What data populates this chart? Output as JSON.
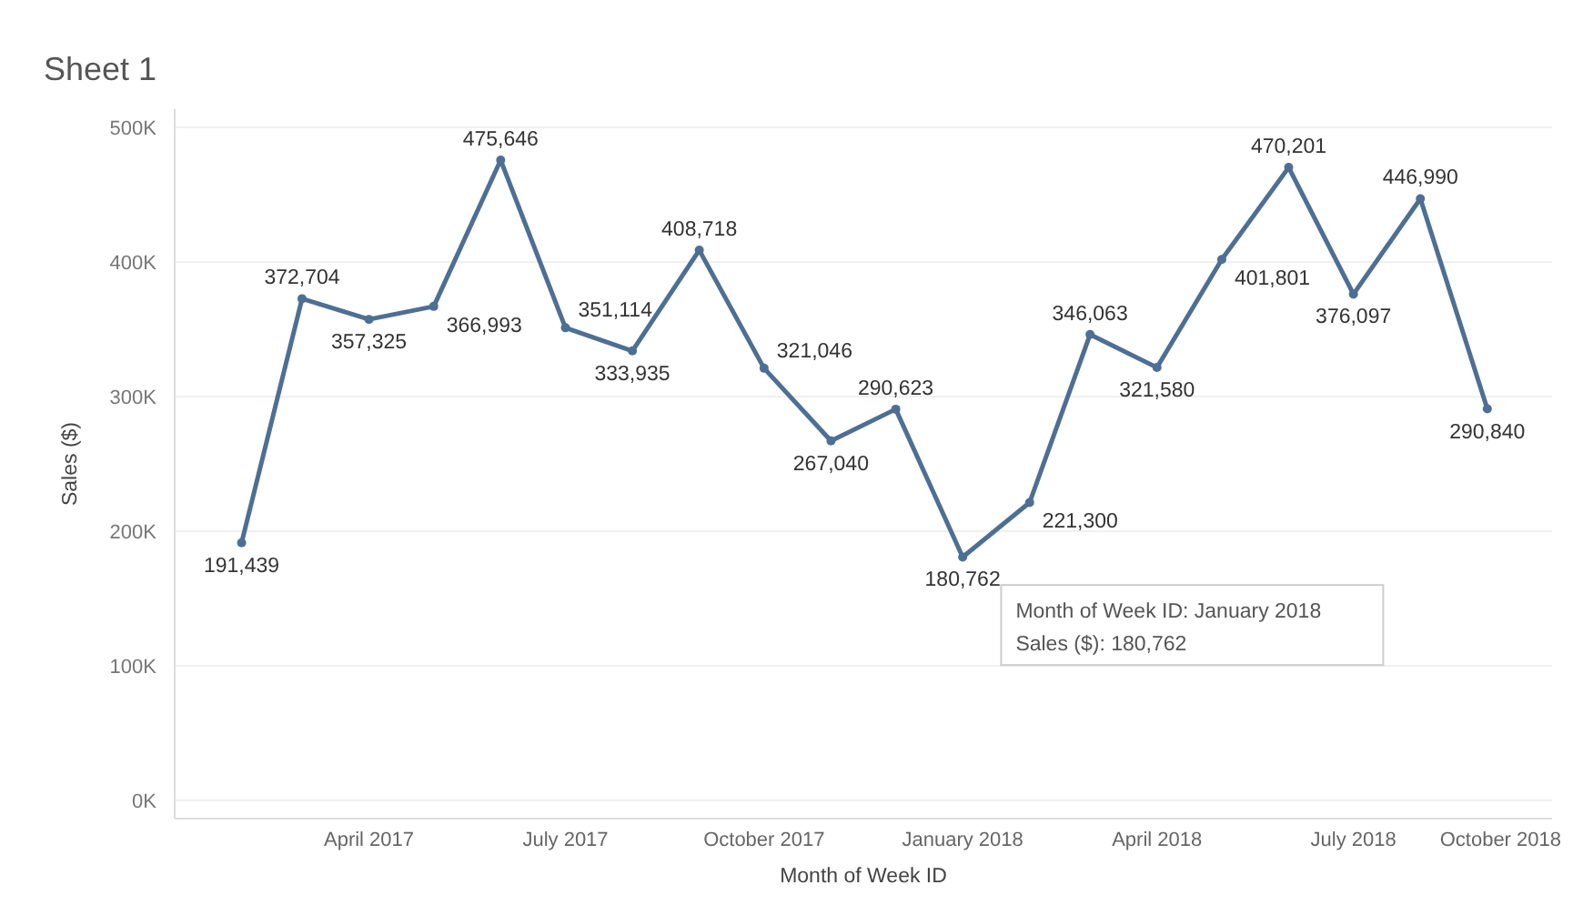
{
  "chart_data": {
    "type": "line",
    "title": "Sheet 1",
    "xlabel": "Month of Week ID",
    "ylabel": "Sales ($)",
    "x": [
      "2017-02",
      "2017-03",
      "2017-04",
      "2017-05",
      "2017-06",
      "2017-07",
      "2017-08",
      "2017-09",
      "2017-10",
      "2017-11",
      "2017-12",
      "2018-01",
      "2018-02",
      "2018-03",
      "2018-04",
      "2018-05",
      "2018-06",
      "2018-07",
      "2018-08",
      "2018-09"
    ],
    "series": [
      {
        "color": "#4e6f94",
        "values": [
          191439,
          372704,
          357325,
          366993,
          475646,
          351114,
          333935,
          408718,
          321046,
          267040,
          290623,
          180762,
          221300,
          346063,
          321580,
          401801,
          470201,
          376097,
          446990,
          290840
        ],
        "value_labels": [
          "191,439",
          "372,704",
          "357,325",
          "366,993",
          "475,646",
          "351,114",
          "333,935",
          "408,718",
          "321,046",
          "267,040",
          "290,623",
          "180,762",
          "221,300",
          "346,063",
          "321,580",
          "401,801",
          "470,201",
          "376,097",
          "446,990",
          "290,840"
        ]
      }
    ],
    "xlim": [
      "2017-01",
      "2018-10"
    ],
    "xticks": [
      {
        "value": "2017-04",
        "label": "April 2017"
      },
      {
        "value": "2017-07",
        "label": "July 2017"
      },
      {
        "value": "2017-10",
        "label": "October 2017"
      },
      {
        "value": "2018-01",
        "label": "January 2018"
      },
      {
        "value": "2018-04",
        "label": "April 2018"
      },
      {
        "value": "2018-07",
        "label": "July 2018"
      },
      {
        "value": "2018-10",
        "label": "October 2018"
      }
    ],
    "ylim": [
      0,
      500000
    ],
    "yticks": [
      {
        "value": 0,
        "label": "0K"
      },
      {
        "value": 100000,
        "label": "100K"
      },
      {
        "value": 200000,
        "label": "200K"
      },
      {
        "value": 300000,
        "label": "300K"
      },
      {
        "value": 400000,
        "label": "400K"
      },
      {
        "value": 500000,
        "label": "500K"
      }
    ],
    "grid": "y",
    "marker": "circle",
    "line_style": "solid",
    "annotations": [
      "Month of Week ID: January 2018\nSales ($): 180,762"
    ]
  }
}
